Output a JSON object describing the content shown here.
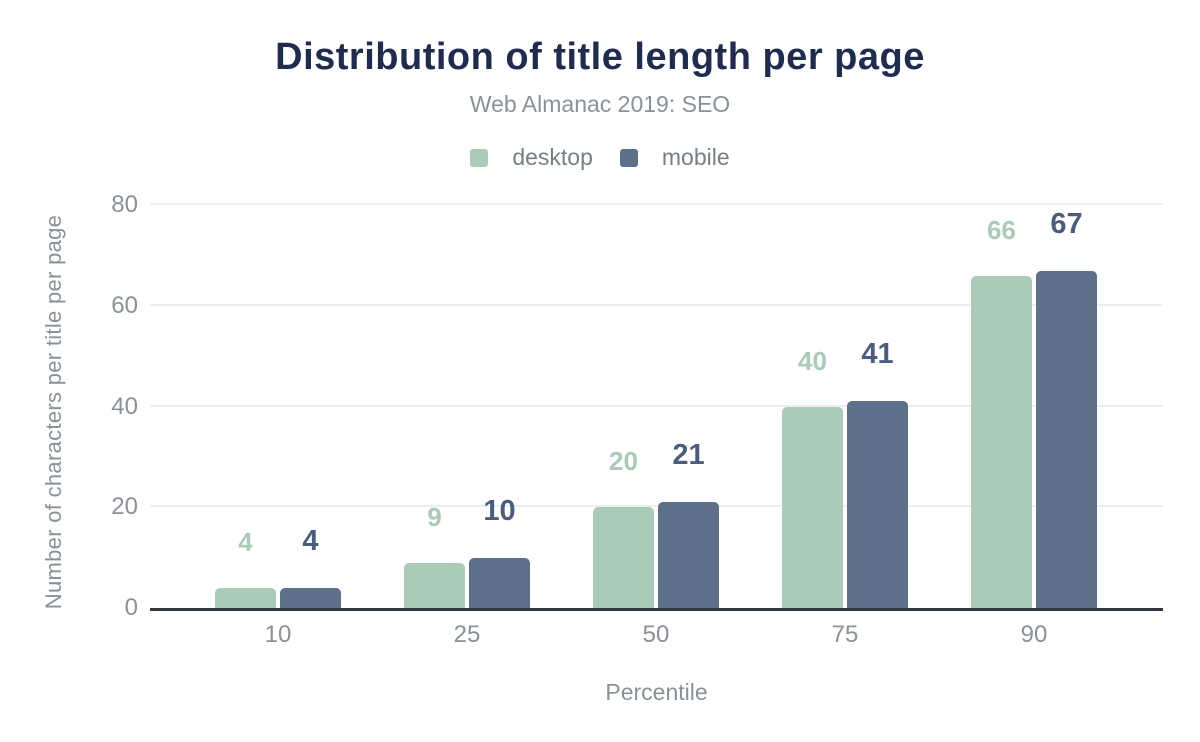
{
  "title": "Distribution of title length per page",
  "subtitle": "Web Almanac 2019: SEO",
  "legend": {
    "items": [
      {
        "label": "desktop",
        "color": "#a9cbb7"
      },
      {
        "label": "mobile",
        "color": "#5e7089"
      }
    ]
  },
  "chart_data": {
    "type": "bar",
    "title": "Distribution of title length per page",
    "subtitle": "Web Almanac 2019: SEO",
    "categories": [
      "10",
      "25",
      "50",
      "75",
      "90"
    ],
    "series": [
      {
        "name": "desktop",
        "color": "#a9cbb7",
        "label_color": "#a9cbb7",
        "values": [
          4,
          9,
          20,
          40,
          66
        ]
      },
      {
        "name": "mobile",
        "color": "#5e7089",
        "label_color": "#4b5d7e",
        "values": [
          4,
          10,
          21,
          41,
          67
        ]
      }
    ],
    "xlabel": "Percentile",
    "ylabel": "Number of characters per title per page",
    "ylim": [
      0,
      80
    ],
    "yticks": [
      0,
      20,
      40,
      60,
      80
    ],
    "grid": "horizontal",
    "legend_position": "top",
    "bar_value_labels_shown": true
  }
}
